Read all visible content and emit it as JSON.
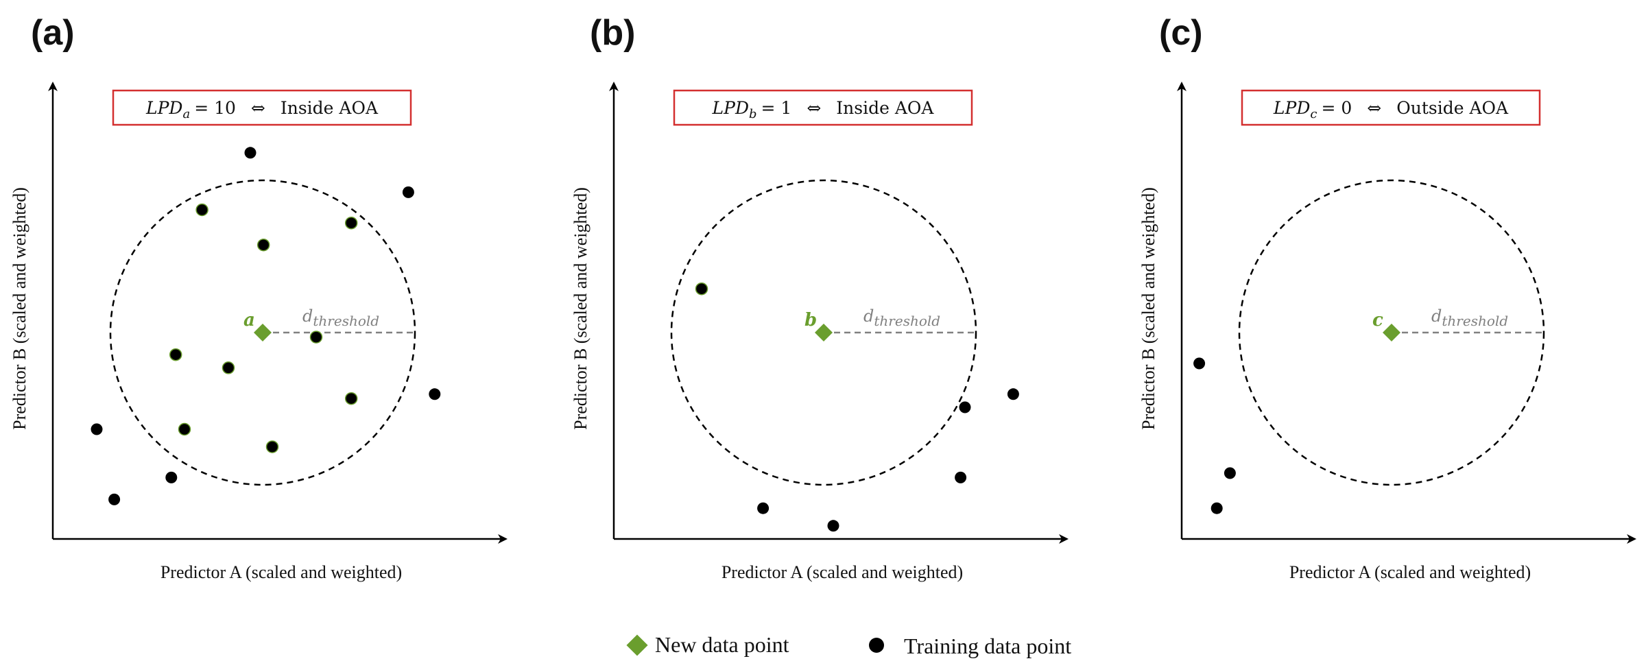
{
  "colors": {
    "accent": "#6a9e2e",
    "box_border": "#d32f2f",
    "threshold_line": "#808080",
    "points": "#000000"
  },
  "panels": [
    {
      "label": "(a)",
      "box": {
        "lpd_var": "LPD",
        "lpd_sub": "a",
        "lpd_value": "= 10",
        "iff": "⇔",
        "status": "Inside AOA"
      },
      "point_label": "a",
      "threshold_label": "d",
      "threshold_sub": "threshold",
      "x_axis_title": "Predictor A (scaled and weighted)",
      "y_axis_title": "Predictor B (scaled and weighted)",
      "training_points": [
        [
          0.45,
          0.88
        ],
        [
          0.34,
          0.75
        ],
        [
          0.68,
          0.72
        ],
        [
          0.48,
          0.67
        ],
        [
          0.81,
          0.79
        ],
        [
          0.28,
          0.42
        ],
        [
          0.4,
          0.39
        ],
        [
          0.6,
          0.46
        ],
        [
          0.68,
          0.32
        ],
        [
          0.3,
          0.25
        ],
        [
          0.5,
          0.21
        ],
        [
          0.1,
          0.25
        ],
        [
          0.87,
          0.33
        ],
        [
          0.27,
          0.14
        ],
        [
          0.14,
          0.09
        ]
      ]
    },
    {
      "label": "(b)",
      "box": {
        "lpd_var": "LPD",
        "lpd_sub": "b",
        "lpd_value": "= 1",
        "iff": "⇔",
        "status": "Inside AOA"
      },
      "point_label": "b",
      "threshold_label": "d",
      "threshold_sub": "threshold",
      "x_axis_title": "Predictor A (scaled and weighted)",
      "y_axis_title": "Predictor B (scaled and weighted)",
      "training_points": [
        [
          0.2,
          0.57
        ],
        [
          0.8,
          0.3
        ],
        [
          0.91,
          0.33
        ],
        [
          0.79,
          0.14
        ],
        [
          0.34,
          0.07
        ],
        [
          0.5,
          0.03
        ]
      ]
    },
    {
      "label": "(c)",
      "box": {
        "lpd_var": "LPD",
        "lpd_sub": "c",
        "lpd_value": "= 0",
        "iff": "⇔",
        "status": "Outside AOA"
      },
      "point_label": "c",
      "threshold_label": "d",
      "threshold_sub": "threshold",
      "x_axis_title": "Predictor A (scaled and weighted)",
      "y_axis_title": "Predictor B (scaled and weighted)",
      "training_points": [
        [
          0.04,
          0.4
        ],
        [
          0.11,
          0.15
        ],
        [
          0.08,
          0.07
        ]
      ]
    }
  ],
  "legend": {
    "new_point": {
      "label": "New data point",
      "icon": "green-diamond"
    },
    "training_point": {
      "label": "Training data point",
      "icon": "black-dot"
    }
  }
}
